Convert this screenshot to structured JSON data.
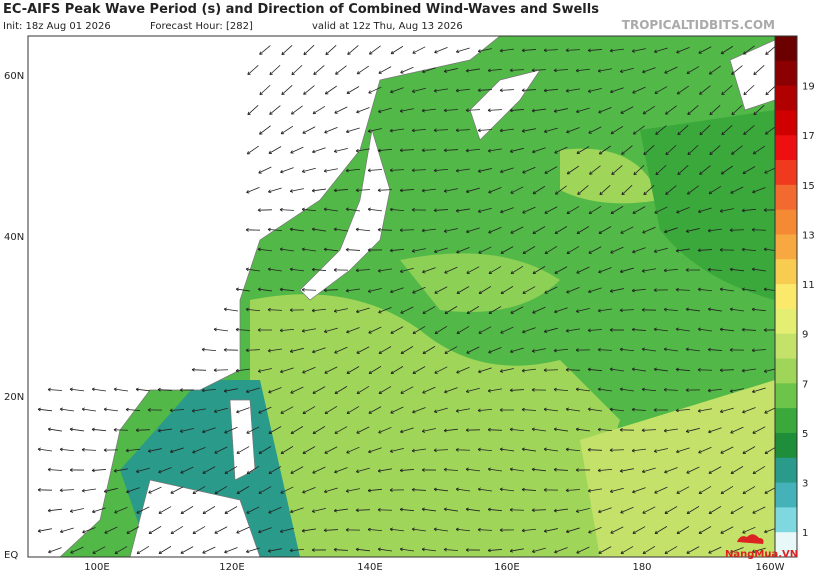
{
  "header": {
    "title": "EC-AIFS Peak Wave Period (s) and Direction of Combined Wind-Waves and Swells",
    "init": "Init: 18z Aug 01 2026",
    "forecast_hour": "Forecast Hour: [282]",
    "valid": "valid at 12z Thu, Aug 13 2026",
    "site": "TROPICALTIDBITS.COM"
  },
  "map": {
    "lat_labels": [
      "60N",
      "40N",
      "20N",
      "EQ"
    ],
    "lon_labels": [
      "100E",
      "120E",
      "140E",
      "160E",
      "180",
      "160W"
    ]
  },
  "colorbar": {
    "labels": [
      "19",
      "17",
      "15",
      "13",
      "11",
      "9",
      "7",
      "5",
      "3",
      "1"
    ]
  },
  "watermark": "NangMua.VN"
}
